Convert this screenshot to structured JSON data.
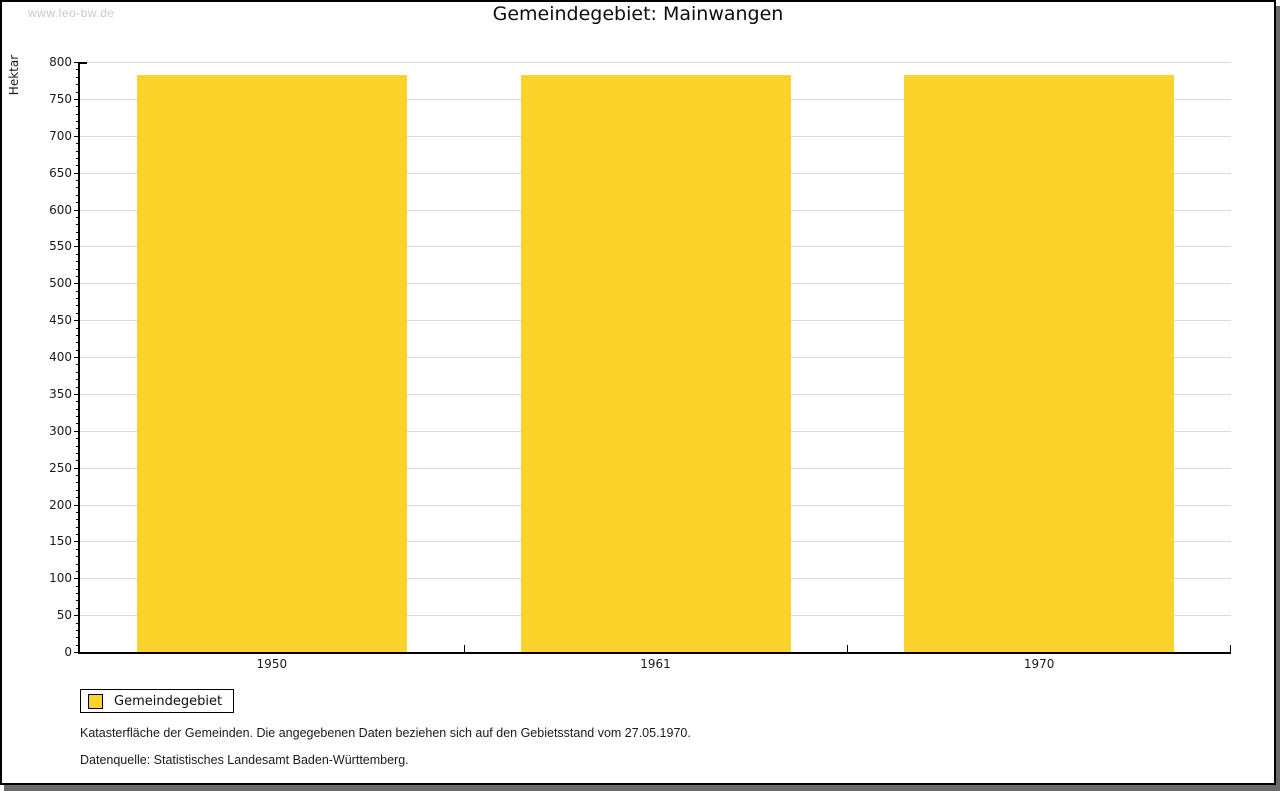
{
  "watermark": "www.leo-bw.de",
  "title": "Gemeindegebiet: Mainwangen",
  "chart_data": {
    "type": "bar",
    "title": "Gemeindegebiet: Mainwangen",
    "categories": [
      "1950",
      "1961",
      "1970"
    ],
    "series": [
      {
        "name": "Gemeindegebiet",
        "values": [
          783,
          783,
          783
        ],
        "color": "#fcd32b"
      }
    ],
    "xlabel": "",
    "ylabel": "Hektar",
    "ylim": [
      0,
      800
    ],
    "y_major_step": 50,
    "y_minor_step": 10,
    "grid": "horizontal-major-gridlines",
    "gridline_color": "#d9d9d9",
    "axis_color": "#000000",
    "legend_position": "below-left"
  },
  "legend": {
    "items": [
      {
        "label": "Gemeindegebiet",
        "color": "#fcd32b"
      }
    ]
  },
  "footnotes": [
    "Katasterfläche der Gemeinden. Die angegebenen Daten beziehen sich auf den Gebietsstand vom 27.05.1970.",
    "Datenquelle: Statistisches Landesamt Baden-Württemberg."
  ]
}
